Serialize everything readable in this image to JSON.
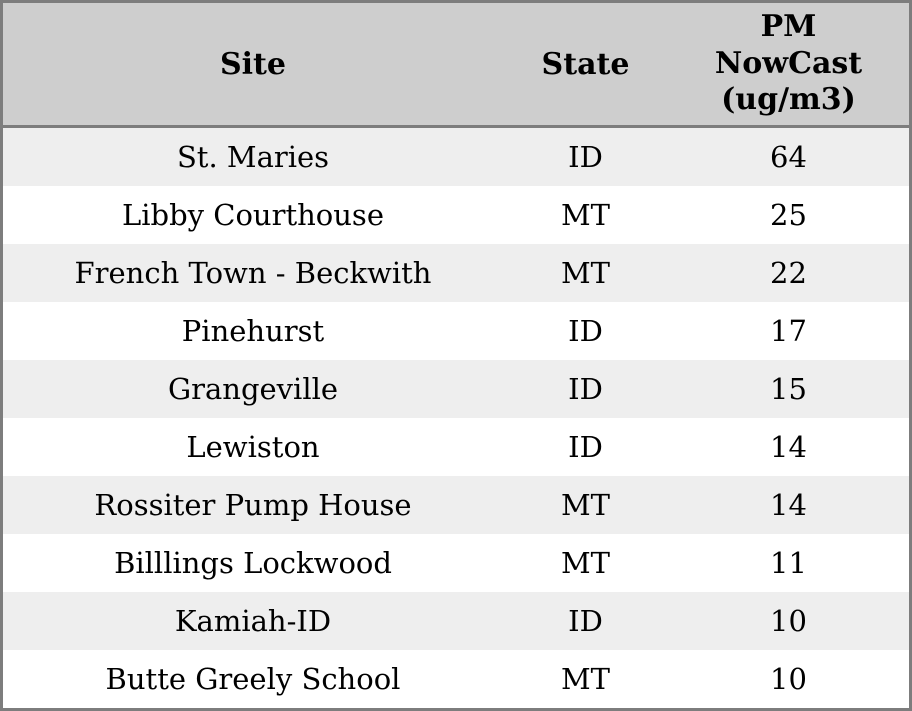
{
  "chart_data": {
    "type": "table",
    "columns": [
      "Site",
      "State",
      "PM NowCast (ug/m3)"
    ],
    "rows": [
      [
        "St. Maries",
        "ID",
        64
      ],
      [
        "Libby Courthouse",
        "MT",
        25
      ],
      [
        "French Town - Beckwith",
        "MT",
        22
      ],
      [
        "Pinehurst",
        "ID",
        17
      ],
      [
        "Grangeville",
        "ID",
        15
      ],
      [
        "Lewiston",
        "ID",
        14
      ],
      [
        "Rossiter Pump House",
        "MT",
        14
      ],
      [
        "Billlings Lockwood",
        "MT",
        11
      ],
      [
        "Kamiah-ID",
        "ID",
        10
      ],
      [
        "Butte Greely School",
        "MT",
        10
      ]
    ],
    "layout": {
      "striped_rows": true,
      "first_data_row_striped": true,
      "text_align": "center"
    }
  },
  "colors": {
    "header_bg": "#cecece",
    "row_stripe_bg": "#eeeeee",
    "row_bg": "#ffffff",
    "border": "#7d7d7d",
    "text": "#000000"
  }
}
